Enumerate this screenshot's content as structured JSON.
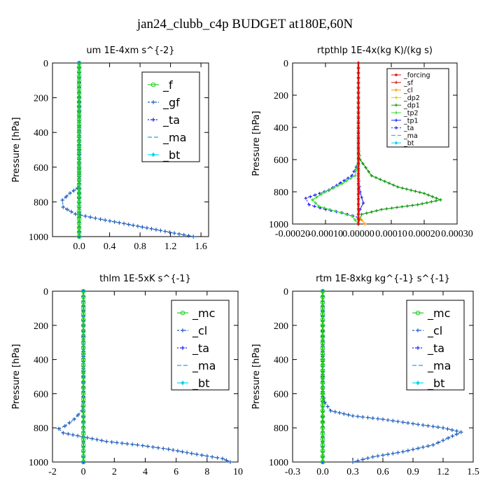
{
  "figure": {
    "title": "jan24_clubb_c4p  BUDGET at180E,60N"
  },
  "colors": {
    "green": "#22cc22",
    "blue_dark": "#1f5fbf",
    "blue": "#2222ff",
    "light_blue": "#2a9df4",
    "cyan": "#00d9ee",
    "red": "#dd1111",
    "orange": "#ff9900",
    "yellow": "#ddcc00",
    "dark_green": "#119911",
    "light_green": "#33dd33",
    "magenta": "#aa00cc"
  },
  "chart_data": [
    {
      "type": "line",
      "title": "um  1E-4xm s^{-2}",
      "ylabel": "Pressure [hPa]",
      "xlim": [
        -0.35,
        1.7
      ],
      "ylim": [
        1000,
        0
      ],
      "xticks": [
        0,
        0.4,
        0.8,
        1.2,
        1.6
      ],
      "xtick_labels": [
        "0.0",
        "0.4",
        "0.8",
        "1.2",
        "1.6"
      ],
      "yticks": [
        0,
        200,
        400,
        600,
        800,
        1000
      ],
      "legend": {
        "position": "top-right",
        "style": "large"
      },
      "series": [
        {
          "name": "_f",
          "color": "#22cc22",
          "dash": "",
          "marker": "o",
          "points": [
            [
              0,
              0
            ],
            [
              0,
              100
            ],
            [
              0,
              200
            ],
            [
              0,
              300
            ],
            [
              0,
              400
            ],
            [
              0,
              500
            ],
            [
              0,
              600
            ],
            [
              0,
              700
            ],
            [
              0,
              800
            ],
            [
              0,
              900
            ],
            [
              0,
              1000
            ]
          ]
        },
        {
          "name": "_gf",
          "color": "#1f5fbf",
          "dash": "3,2",
          "marker": "cross",
          "points": [
            [
              0,
              0
            ],
            [
              0,
              200
            ],
            [
              0,
              400
            ],
            [
              0,
              600
            ],
            [
              0,
              680
            ],
            [
              -0.02,
              720
            ],
            [
              -0.12,
              750
            ],
            [
              -0.22,
              790
            ],
            [
              -0.21,
              830
            ],
            [
              -0.05,
              870
            ],
            [
              0.28,
              900
            ],
            [
              0.65,
              930
            ],
            [
              0.95,
              955
            ],
            [
              1.25,
              980
            ],
            [
              1.5,
              1000
            ]
          ]
        },
        {
          "name": "_ta",
          "color": "#2222ff",
          "dash": "2,2",
          "marker": "cross",
          "points": [
            [
              0,
              0
            ],
            [
              0,
              500
            ],
            [
              0,
              1000
            ]
          ]
        },
        {
          "name": "_ma",
          "color": "#2a9df4",
          "dash": "6,3",
          "marker": "none",
          "points": [
            [
              0,
              0
            ],
            [
              0,
              500
            ],
            [
              0,
              1000
            ]
          ]
        },
        {
          "name": "_bt",
          "color": "#00d9ee",
          "dash": "",
          "marker": "diamond",
          "points": [
            [
              0,
              0
            ],
            [
              0,
              500
            ],
            [
              0,
              1000
            ]
          ]
        }
      ]
    },
    {
      "type": "line",
      "title": "rtpthlp  1E-4x(kg K)/(kg s)",
      "ylabel": "Pressure [hPa]",
      "xlim": [
        -0.0002,
        0.0003
      ],
      "ylim": [
        1000,
        0
      ],
      "xticks": [
        -0.0002,
        -0.0001,
        0,
        0.0001,
        0.0002,
        0.0003
      ],
      "xtick_labels": [
        "-0.00020",
        "-0.00010",
        "0.00000",
        "0.00010",
        "0.00020",
        "0.00030"
      ],
      "yticks": [
        0,
        200,
        400,
        600,
        800,
        1000
      ],
      "legend": {
        "position": "top-right",
        "style": "small"
      },
      "series": [
        {
          "name": "_forcing",
          "color": "#dd1111",
          "dash": "",
          "marker": "dot",
          "points": [
            [
              0,
              0
            ],
            [
              0,
              500
            ],
            [
              0,
              1000
            ]
          ]
        },
        {
          "name": "_sf",
          "color": "#dd1111",
          "dash": "",
          "marker": "cross",
          "points": [
            [
              0,
              0
            ],
            [
              0,
              500
            ],
            [
              0,
              1000
            ]
          ]
        },
        {
          "name": "_cl",
          "color": "#ff9900",
          "dash": "",
          "marker": "cross",
          "points": [
            [
              0,
              0
            ],
            [
              0,
              950
            ],
            [
              2e-05,
              1000
            ]
          ]
        },
        {
          "name": "_dp2",
          "color": "#ddcc00",
          "dash": "",
          "marker": "cross",
          "points": [
            [
              0,
              0
            ],
            [
              0,
              1000
            ]
          ]
        },
        {
          "name": "_dp1",
          "color": "#119911",
          "dash": "",
          "marker": "cross",
          "points": [
            [
              0,
              0
            ],
            [
              0,
              520
            ],
            [
              5e-06,
              600
            ],
            [
              4e-05,
              700
            ],
            [
              0.00012,
              770
            ],
            [
              0.0002,
              810
            ],
            [
              0.00025,
              850
            ],
            [
              0.00018,
              880
            ],
            [
              7e-05,
              910
            ],
            [
              1e-05,
              940
            ],
            [
              0,
              1000
            ]
          ]
        },
        {
          "name": "_tp2",
          "color": "#33dd33",
          "dash": "",
          "marker": "cross",
          "points": [
            [
              0,
              0
            ],
            [
              0,
              600
            ],
            [
              -1e-05,
              700
            ],
            [
              -5e-05,
              750
            ],
            [
              -0.0001,
              800
            ],
            [
              -0.00014,
              850
            ],
            [
              -0.00012,
              890
            ],
            [
              -7e-05,
              920
            ],
            [
              -2e-05,
              950
            ],
            [
              0,
              1000
            ]
          ]
        },
        {
          "name": "_tp1",
          "color": "#2222ff",
          "dash": "",
          "marker": "cross",
          "points": [
            [
              0,
              0
            ],
            [
              0,
              600
            ],
            [
              0,
              700
            ],
            [
              5e-06,
              800
            ],
            [
              1.5e-05,
              870
            ],
            [
              5e-06,
              910
            ],
            [
              0,
              940
            ],
            [
              0,
              1000
            ]
          ]
        },
        {
          "name": "_ta",
          "color": "#2222ff",
          "dash": "2,2",
          "marker": "cross",
          "points": [
            [
              0,
              0
            ],
            [
              0,
              620
            ],
            [
              -2e-05,
              700
            ],
            [
              -9e-05,
              790
            ],
            [
              -0.00016,
              840
            ],
            [
              -0.00015,
              880
            ],
            [
              -0.0001,
              910
            ],
            [
              -5e-05,
              930
            ],
            [
              0,
              960
            ],
            [
              0,
              1000
            ]
          ]
        },
        {
          "name": "_ma",
          "color": "#2a9df4",
          "dash": "6,3",
          "marker": "none",
          "points": [
            [
              0,
              0
            ],
            [
              0,
              1000
            ]
          ]
        },
        {
          "name": "_bt",
          "color": "#00d9ee",
          "dash": "",
          "marker": "diamond",
          "points": [
            [
              0,
              0
            ],
            [
              0,
              1000
            ]
          ]
        }
      ]
    },
    {
      "type": "line",
      "title": "thlm  1E-5xK s^{-1}",
      "ylabel": "Pressure [hPa]",
      "xlim": [
        -2,
        10
      ],
      "ylim": [
        1000,
        0
      ],
      "xticks": [
        -2,
        0,
        2,
        4,
        6,
        8,
        10
      ],
      "xtick_labels": [
        "-2",
        "0",
        "2",
        "4",
        "6",
        "8",
        "10"
      ],
      "yticks": [
        0,
        200,
        400,
        600,
        800,
        1000
      ],
      "legend": {
        "position": "top-right",
        "style": "large"
      },
      "series": [
        {
          "name": "_mc",
          "color": "#22cc22",
          "dash": "",
          "marker": "o",
          "points": [
            [
              0,
              0
            ],
            [
              0,
              100
            ],
            [
              0,
              200
            ],
            [
              0,
              300
            ],
            [
              0,
              400
            ],
            [
              0,
              500
            ],
            [
              0,
              600
            ],
            [
              0,
              700
            ],
            [
              0,
              800
            ],
            [
              0,
              900
            ],
            [
              0,
              1000
            ]
          ]
        },
        {
          "name": "_cl",
          "color": "#1f5fbf",
          "dash": "3,2",
          "marker": "cross",
          "points": [
            [
              0,
              0
            ],
            [
              0,
              650
            ],
            [
              -0.1,
              700
            ],
            [
              -0.6,
              750
            ],
            [
              -1.2,
              790
            ],
            [
              -1.6,
              805
            ],
            [
              -1.3,
              830
            ],
            [
              1.5,
              880
            ],
            [
              3.5,
              900
            ],
            [
              5.5,
              925
            ],
            [
              7.0,
              950
            ],
            [
              9.0,
              980
            ],
            [
              9.5,
              1000
            ]
          ]
        },
        {
          "name": "_ta",
          "color": "#2222ff",
          "dash": "2,2",
          "marker": "cross",
          "points": [
            [
              0,
              0
            ],
            [
              0,
              500
            ],
            [
              0,
              1000
            ]
          ]
        },
        {
          "name": "_ma",
          "color": "#2a9df4",
          "dash": "6,3",
          "marker": "none",
          "points": [
            [
              0,
              0
            ],
            [
              0,
              500
            ],
            [
              0,
              1000
            ]
          ]
        },
        {
          "name": "_bt",
          "color": "#00d9ee",
          "dash": "",
          "marker": "diamond",
          "points": [
            [
              0,
              0
            ],
            [
              0,
              500
            ],
            [
              0,
              1000
            ]
          ]
        }
      ]
    },
    {
      "type": "line",
      "title": "rtm  1E-8xkg kg^{-1} s^{-1}",
      "ylabel": "Pressure [hPa]",
      "xlim": [
        -0.3,
        1.5
      ],
      "ylim": [
        1000,
        0
      ],
      "xticks": [
        -0.3,
        0,
        0.3,
        0.6,
        0.9,
        1.2,
        1.5
      ],
      "xtick_labels": [
        "-0.3",
        "0.0",
        "0.3",
        "0.6",
        "0.9",
        "1.2",
        "1.5"
      ],
      "yticks": [
        0,
        200,
        400,
        600,
        800,
        1000
      ],
      "legend": {
        "position": "top-right",
        "style": "large"
      },
      "series": [
        {
          "name": "_mc",
          "color": "#22cc22",
          "dash": "",
          "marker": "o",
          "points": [
            [
              0,
              0
            ],
            [
              0,
              100
            ],
            [
              0,
              200
            ],
            [
              0,
              300
            ],
            [
              0,
              400
            ],
            [
              0,
              500
            ],
            [
              0,
              600
            ],
            [
              0,
              700
            ],
            [
              0,
              800
            ],
            [
              0,
              900
            ],
            [
              0,
              1000
            ]
          ]
        },
        {
          "name": "_cl",
          "color": "#1f5fbf",
          "dash": "3,2",
          "marker": "cross",
          "points": [
            [
              0,
              0
            ],
            [
              0,
              600
            ],
            [
              0.02,
              650
            ],
            [
              0.08,
              700
            ],
            [
              0.3,
              730
            ],
            [
              0.6,
              750
            ],
            [
              0.95,
              780
            ],
            [
              1.2,
              800
            ],
            [
              1.38,
              825
            ],
            [
              1.25,
              860
            ],
            [
              1.1,
              900
            ],
            [
              0.8,
              940
            ],
            [
              0.5,
              970
            ],
            [
              0.3,
              1000
            ]
          ]
        },
        {
          "name": "_ta",
          "color": "#2222ff",
          "dash": "2,2",
          "marker": "cross",
          "points": [
            [
              0,
              0
            ],
            [
              0,
              500
            ],
            [
              0,
              1000
            ]
          ]
        },
        {
          "name": "_ma",
          "color": "#2a9df4",
          "dash": "6,3",
          "marker": "none",
          "points": [
            [
              0,
              0
            ],
            [
              0,
              500
            ],
            [
              0,
              1000
            ]
          ]
        },
        {
          "name": "_bt",
          "color": "#00d9ee",
          "dash": "",
          "marker": "diamond",
          "points": [
            [
              0,
              0
            ],
            [
              0,
              500
            ],
            [
              0,
              1000
            ]
          ]
        }
      ]
    }
  ]
}
